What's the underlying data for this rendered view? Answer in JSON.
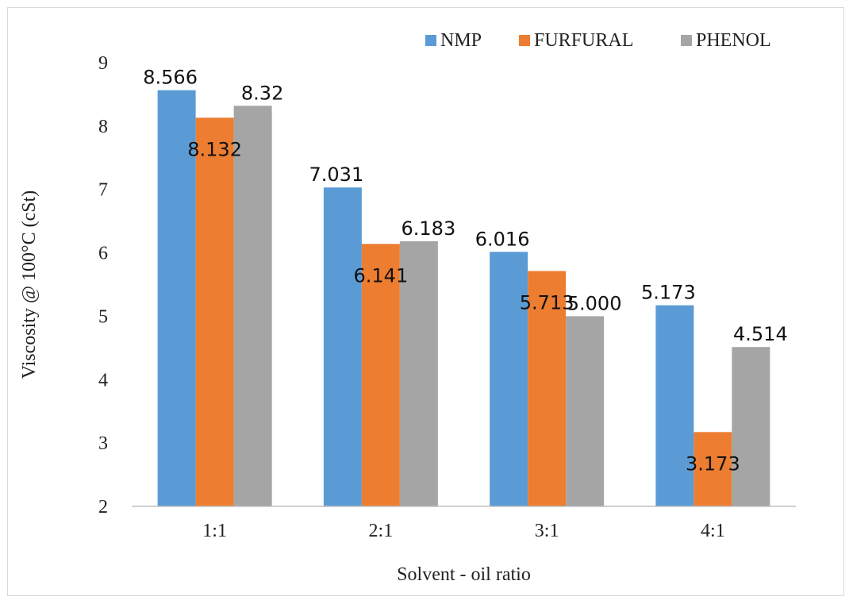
{
  "chart_data": {
    "type": "bar",
    "categories": [
      "1:1",
      "2:1",
      "3:1",
      "4:1"
    ],
    "series": [
      {
        "name": "NMP",
        "values": [
          8.566,
          7.031,
          6.016,
          5.173
        ],
        "labels": [
          "8.566",
          "7.031",
          "6.016",
          "5.173"
        ],
        "color": "#5b9bd5"
      },
      {
        "name": "FURFURAL",
        "values": [
          8.132,
          6.141,
          5.713,
          3.173
        ],
        "labels": [
          "8.132",
          "6.141",
          "5.713",
          "3.173"
        ],
        "color": "#ed7d31"
      },
      {
        "name": "PHENOL",
        "values": [
          8.32,
          6.183,
          5.0,
          4.514
        ],
        "labels": [
          "8.32",
          "6.183",
          "5.000",
          "4.514"
        ],
        "color": "#a5a5a5"
      }
    ],
    "xlabel": "Solvent - oil ratio",
    "ylabel": "Viscosity @ 100°C (cSt)",
    "ylim": [
      2,
      9
    ],
    "yticks": [
      "2",
      "3",
      "4",
      "5",
      "6",
      "7",
      "8",
      "9"
    ],
    "grid": false,
    "legend_position": "top-right"
  }
}
